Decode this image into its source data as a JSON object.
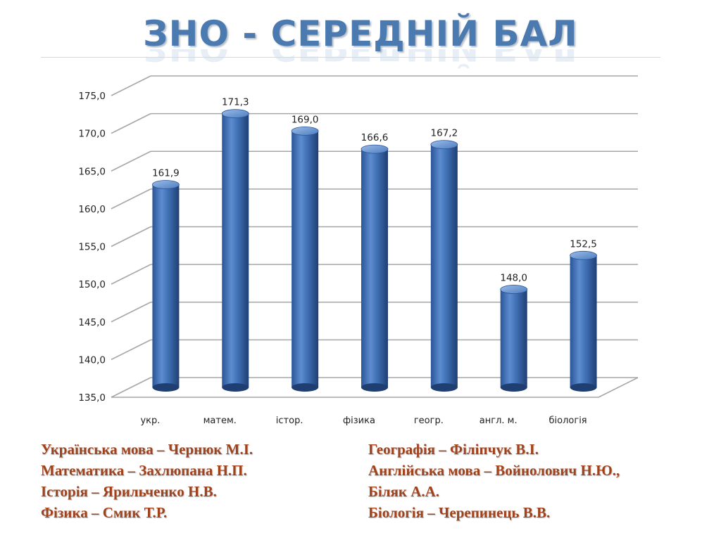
{
  "title": "ЗНО - СЕРЕДНІЙ БАЛ",
  "chart_data": {
    "type": "bar",
    "categories": [
      "укр.",
      "матем.",
      "істор.",
      "фізика",
      "геогр.",
      "англ. м.",
      "біологія"
    ],
    "values": [
      161.9,
      171.3,
      169.0,
      166.6,
      167.2,
      148.0,
      152.5
    ],
    "value_labels": [
      "161,9",
      "171,3",
      "169,0",
      "166,6",
      "167,2",
      "148,0",
      "152,5"
    ],
    "ylim": [
      135,
      175
    ],
    "yticks": [
      135,
      140,
      145,
      150,
      155,
      160,
      165,
      170,
      175
    ],
    "ytick_labels": [
      "135,0",
      "140,0",
      "145,0",
      "150,0",
      "155,0",
      "160,0",
      "165,0",
      "170,0",
      "175,0"
    ],
    "grid": true,
    "style": "3d-cylinder",
    "colors": {
      "bar": "#3f6fb3",
      "bar_dark": "#1f3f73",
      "bar_light": "#8fb3e3",
      "grid": "#a6a6a6"
    }
  },
  "teachers": {
    "left": [
      {
        "subject": "Українська мова",
        "sep": " – ",
        "name": "Чернюк М.І."
      },
      {
        "subject": "Математика",
        "sep": " – ",
        "name": "Захлюпана Н.П."
      },
      {
        "subject": "Історія",
        "sep": " – ",
        "name": "Ярильченко Н.В."
      },
      {
        "subject": "Фізика",
        "sep": " – ",
        "name": "Смик Т.Р."
      }
    ],
    "right": [
      {
        "subject": "Географія",
        "sep": " – ",
        "name": "Філіпчук В.І."
      },
      {
        "subject": "Англійська мова",
        "sep": " – ",
        "name": "Войнолович Н.Ю.,"
      },
      {
        "subject": "",
        "sep": "",
        "name": "Біляк А.А."
      },
      {
        "subject": "Біологія ",
        "sep": " – ",
        "name": "Черепинець В.В."
      }
    ]
  }
}
